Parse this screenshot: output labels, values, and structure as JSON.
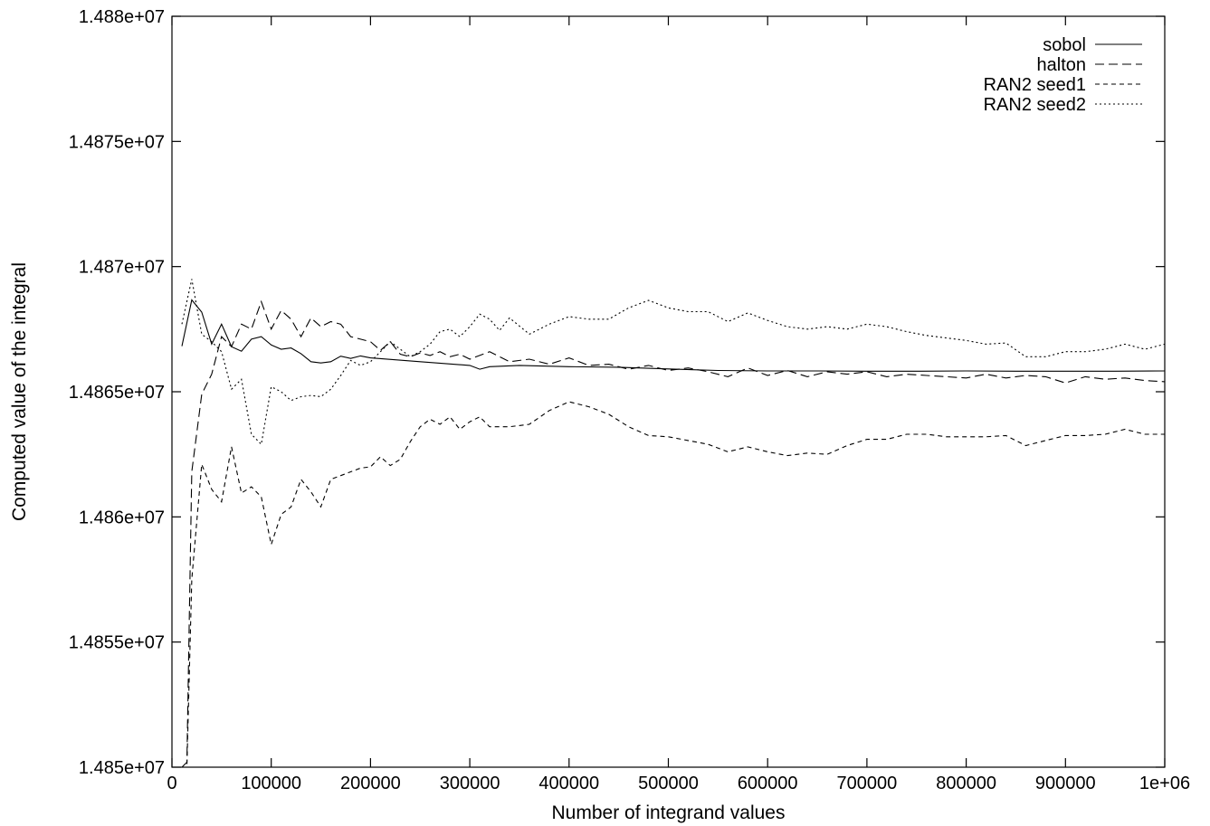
{
  "chart_data": {
    "type": "line",
    "title": "",
    "xlabel": "Number of integrand values",
    "ylabel": "Computed value of the integral",
    "xlim": [
      0,
      1000000
    ],
    "ylim": [
      14850000,
      14880000
    ],
    "x_ticks": [
      {
        "value": 0,
        "label": "0"
      },
      {
        "value": 100000,
        "label": "100000"
      },
      {
        "value": 200000,
        "label": "200000"
      },
      {
        "value": 300000,
        "label": "300000"
      },
      {
        "value": 400000,
        "label": "400000"
      },
      {
        "value": 500000,
        "label": "500000"
      },
      {
        "value": 600000,
        "label": "600000"
      },
      {
        "value": 700000,
        "label": "700000"
      },
      {
        "value": 800000,
        "label": "800000"
      },
      {
        "value": 900000,
        "label": "900000"
      },
      {
        "value": 1000000,
        "label": "1e+06"
      }
    ],
    "y_ticks": [
      {
        "value": 14850000,
        "label": "1.485e+07"
      },
      {
        "value": 14855000,
        "label": "1.4855e+07"
      },
      {
        "value": 14860000,
        "label": "1.486e+07"
      },
      {
        "value": 14865000,
        "label": "1.4865e+07"
      },
      {
        "value": 14870000,
        "label": "1.487e+07"
      },
      {
        "value": 14875000,
        "label": "1.4875e+07"
      },
      {
        "value": 14880000,
        "label": "1.488e+07"
      }
    ],
    "grid": false,
    "legend_position": "top-right",
    "series": [
      {
        "name": "sobol",
        "dash": "",
        "x": [
          10000,
          20000,
          30000,
          40000,
          50000,
          60000,
          70000,
          80000,
          90000,
          100000,
          110000,
          120000,
          130000,
          140000,
          150000,
          160000,
          170000,
          180000,
          190000,
          200000,
          250000,
          300000,
          310000,
          320000,
          350000,
          400000,
          450000,
          500000,
          550000,
          600000,
          650000,
          700000,
          750000,
          800000,
          850000,
          900000,
          950000,
          1000000
        ],
        "values": [
          14866820,
          14868670,
          14868180,
          14866900,
          14867700,
          14866800,
          14866620,
          14867100,
          14867200,
          14866870,
          14866700,
          14866750,
          14866520,
          14866200,
          14866150,
          14866200,
          14866420,
          14866330,
          14866430,
          14866350,
          14866200,
          14866050,
          14865900,
          14866000,
          14866050,
          14866000,
          14865980,
          14865910,
          14865850,
          14865830,
          14865830,
          14865820,
          14865820,
          14865830,
          14865820,
          14865820,
          14865820,
          14865830
        ]
      },
      {
        "name": "halton",
        "dash": "10,5",
        "x": [
          10000,
          15000,
          20000,
          30000,
          40000,
          50000,
          60000,
          70000,
          80000,
          90000,
          100000,
          110000,
          120000,
          130000,
          140000,
          150000,
          160000,
          170000,
          180000,
          190000,
          200000,
          210000,
          220000,
          230000,
          240000,
          250000,
          260000,
          270000,
          280000,
          290000,
          300000,
          320000,
          340000,
          360000,
          380000,
          400000,
          420000,
          440000,
          460000,
          480000,
          500000,
          520000,
          540000,
          560000,
          580000,
          600000,
          620000,
          640000,
          660000,
          680000,
          700000,
          720000,
          740000,
          760000,
          780000,
          800000,
          820000,
          840000,
          860000,
          880000,
          900000,
          920000,
          940000,
          960000,
          980000,
          1000000
        ],
        "values": [
          14849600,
          14850200,
          14861800,
          14864900,
          14865700,
          14867200,
          14866800,
          14867700,
          14867500,
          14868600,
          14867500,
          14868250,
          14867900,
          14867200,
          14867950,
          14867600,
          14867800,
          14867700,
          14867200,
          14867100,
          14867000,
          14866650,
          14867000,
          14866500,
          14866400,
          14866550,
          14866450,
          14866600,
          14866400,
          14866500,
          14866300,
          14866600,
          14866200,
          14866300,
          14866100,
          14866350,
          14866050,
          14866100,
          14865900,
          14866050,
          14865850,
          14865950,
          14865800,
          14865600,
          14865950,
          14865650,
          14865850,
          14865600,
          14865800,
          14865700,
          14865800,
          14865600,
          14865700,
          14865650,
          14865600,
          14865550,
          14865700,
          14865550,
          14865650,
          14865600,
          14865350,
          14865600,
          14865500,
          14865550,
          14865450,
          14865400
        ]
      },
      {
        "name": "RAN2 seed1",
        "dash": "5,4",
        "x": [
          10000,
          15000,
          20000,
          30000,
          40000,
          50000,
          60000,
          70000,
          80000,
          90000,
          100000,
          110000,
          120000,
          130000,
          140000,
          150000,
          160000,
          170000,
          180000,
          190000,
          200000,
          210000,
          220000,
          230000,
          240000,
          250000,
          260000,
          270000,
          280000,
          290000,
          300000,
          310000,
          320000,
          340000,
          360000,
          380000,
          400000,
          420000,
          440000,
          460000,
          480000,
          500000,
          520000,
          540000,
          560000,
          580000,
          600000,
          620000,
          640000,
          660000,
          680000,
          700000,
          720000,
          740000,
          760000,
          780000,
          800000,
          820000,
          840000,
          860000,
          880000,
          900000,
          920000,
          940000,
          960000,
          980000,
          1000000
        ],
        "values": [
          14847200,
          14849800,
          14857500,
          14862100,
          14861100,
          14860600,
          14862800,
          14860950,
          14861200,
          14860800,
          14858900,
          14860100,
          14860400,
          14861500,
          14861000,
          14860400,
          14861500,
          14861650,
          14861800,
          14861950,
          14862000,
          14862400,
          14862050,
          14862300,
          14863000,
          14863600,
          14863900,
          14863700,
          14864000,
          14863500,
          14863800,
          14864000,
          14863600,
          14863600,
          14863700,
          14864250,
          14864600,
          14864400,
          14864100,
          14863600,
          14863250,
          14863200,
          14863050,
          14862900,
          14862600,
          14862800,
          14862600,
          14862450,
          14862550,
          14862500,
          14862850,
          14863100,
          14863100,
          14863300,
          14863300,
          14863200,
          14863200,
          14863200,
          14863250,
          14862850,
          14863050,
          14863250,
          14863250,
          14863300,
          14863500,
          14863300,
          14863300
        ]
      },
      {
        "name": "RAN2 seed2",
        "dash": "2,3",
        "x": [
          10000,
          20000,
          30000,
          40000,
          50000,
          60000,
          70000,
          80000,
          90000,
          100000,
          110000,
          120000,
          130000,
          140000,
          150000,
          160000,
          170000,
          180000,
          190000,
          200000,
          210000,
          220000,
          230000,
          240000,
          250000,
          260000,
          270000,
          280000,
          290000,
          300000,
          310000,
          320000,
          330000,
          340000,
          360000,
          380000,
          400000,
          420000,
          440000,
          460000,
          480000,
          500000,
          520000,
          540000,
          560000,
          580000,
          600000,
          620000,
          640000,
          660000,
          680000,
          700000,
          720000,
          740000,
          760000,
          780000,
          800000,
          820000,
          840000,
          860000,
          880000,
          900000,
          920000,
          940000,
          960000,
          980000,
          1000000
        ],
        "values": [
          14867700,
          14869500,
          14867300,
          14867000,
          14866600,
          14865100,
          14865500,
          14863300,
          14862900,
          14865200,
          14865000,
          14864650,
          14864800,
          14864850,
          14864800,
          14865100,
          14865650,
          14866250,
          14866050,
          14866200,
          14866600,
          14867000,
          14866700,
          14866400,
          14866600,
          14866900,
          14867400,
          14867500,
          14867200,
          14867600,
          14868100,
          14867900,
          14867450,
          14867950,
          14867300,
          14867700,
          14868000,
          14867900,
          14867900,
          14868350,
          14868650,
          14868350,
          14868200,
          14868200,
          14867800,
          14868150,
          14867850,
          14867600,
          14867500,
          14867600,
          14867500,
          14867700,
          14867600,
          14867400,
          14867250,
          14867150,
          14867050,
          14866900,
          14866950,
          14866400,
          14866400,
          14866600,
          14866600,
          14866700,
          14866900,
          14866700,
          14866900
        ]
      }
    ]
  }
}
